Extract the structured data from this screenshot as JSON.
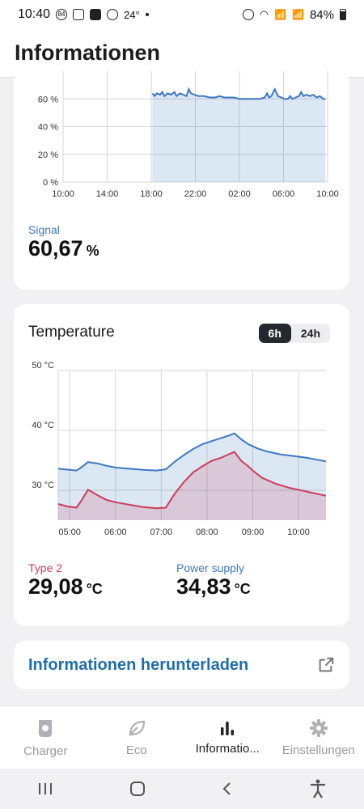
{
  "status_bar": {
    "time": "10:40",
    "notif_badge": "84",
    "temperature": "24°",
    "battery": "84%"
  },
  "app": {
    "title": "Informationen"
  },
  "signal": {
    "label": "Signal",
    "value": "60,67",
    "unit": "%",
    "chart_data": {
      "type": "area",
      "yticks": [
        "0 %",
        "20 %",
        "40 %",
        "60 %"
      ],
      "xticks": [
        "10:00",
        "14:00",
        "18:00",
        "22:00",
        "02:00",
        "06:00",
        "10:00"
      ],
      "ylim": [
        0,
        80
      ],
      "xlim": [
        0,
        24
      ],
      "series": [
        {
          "color": "#3c78c2",
          "points": [
            [
              8.1,
              64
            ],
            [
              8.3,
              62
            ],
            [
              8.5,
              64
            ],
            [
              8.8,
              63
            ],
            [
              9.0,
              65
            ],
            [
              9.2,
              62
            ],
            [
              9.5,
              64
            ],
            [
              9.8,
              63
            ],
            [
              10.1,
              65
            ],
            [
              10.3,
              62
            ],
            [
              10.6,
              64
            ],
            [
              10.9,
              63
            ],
            [
              11.2,
              62
            ],
            [
              11.4,
              67
            ],
            [
              11.6,
              64
            ],
            [
              11.9,
              63
            ],
            [
              12.3,
              62
            ],
            [
              12.8,
              62
            ],
            [
              13.3,
              61
            ],
            [
              13.8,
              61
            ],
            [
              14.2,
              62
            ],
            [
              14.6,
              61
            ],
            [
              15.0,
              61
            ],
            [
              15.5,
              61
            ],
            [
              16.0,
              60
            ],
            [
              16.6,
              60
            ],
            [
              17.2,
              60
            ],
            [
              17.8,
              60
            ],
            [
              18.3,
              61
            ],
            [
              18.5,
              64
            ],
            [
              18.7,
              61
            ],
            [
              18.9,
              62
            ],
            [
              19.2,
              67
            ],
            [
              19.5,
              62
            ],
            [
              19.8,
              61
            ],
            [
              20.1,
              60
            ],
            [
              20.4,
              60
            ],
            [
              20.6,
              62
            ],
            [
              20.8,
              60
            ],
            [
              21.1,
              61
            ],
            [
              21.4,
              62
            ],
            [
              21.6,
              65
            ],
            [
              21.8,
              62
            ],
            [
              22.1,
              63
            ],
            [
              22.4,
              62
            ],
            [
              22.7,
              63
            ],
            [
              23.0,
              61
            ],
            [
              23.3,
              62
            ],
            [
              23.6,
              60
            ],
            [
              23.8,
              60
            ]
          ]
        }
      ]
    }
  },
  "temperature": {
    "title": "Temperature",
    "toggle": [
      "6h",
      "24h"
    ],
    "active_toggle": "6h",
    "chart_data": {
      "type": "area",
      "yticks": [
        "30 °C",
        "40 °C",
        "50 °C"
      ],
      "xticks": [
        "05:00",
        "06:00",
        "07:00",
        "08:00",
        "09:00",
        "10:00"
      ],
      "ylim": [
        25,
        50
      ],
      "xlim": [
        4.75,
        10.6
      ],
      "series": [
        {
          "name": "Power supply",
          "color": "#3c78c2",
          "points": [
            [
              4.75,
              33.6
            ],
            [
              5.0,
              33.4
            ],
            [
              5.15,
              33.3
            ],
            [
              5.25,
              33.8
            ],
            [
              5.4,
              34.7
            ],
            [
              5.6,
              34.5
            ],
            [
              5.8,
              34.1
            ],
            [
              6.0,
              33.8
            ],
            [
              6.3,
              33.6
            ],
            [
              6.6,
              33.4
            ],
            [
              6.9,
              33.3
            ],
            [
              7.1,
              33.5
            ],
            [
              7.3,
              34.8
            ],
            [
              7.5,
              35.9
            ],
            [
              7.7,
              36.9
            ],
            [
              7.9,
              37.7
            ],
            [
              8.1,
              38.2
            ],
            [
              8.3,
              38.7
            ],
            [
              8.5,
              39.2
            ],
            [
              8.6,
              39.5
            ],
            [
              8.75,
              38.5
            ],
            [
              8.9,
              37.7
            ],
            [
              9.1,
              37.0
            ],
            [
              9.3,
              36.5
            ],
            [
              9.6,
              36.0
            ],
            [
              9.9,
              35.7
            ],
            [
              10.2,
              35.4
            ],
            [
              10.6,
              34.83
            ]
          ]
        },
        {
          "name": "Type 2",
          "color": "#cc3c5a",
          "points": [
            [
              4.75,
              27.7
            ],
            [
              4.95,
              27.3
            ],
            [
              5.15,
              27.1
            ],
            [
              5.25,
              28.2
            ],
            [
              5.4,
              30.1
            ],
            [
              5.6,
              29.2
            ],
            [
              5.8,
              28.4
            ],
            [
              6.0,
              28.0
            ],
            [
              6.3,
              27.6
            ],
            [
              6.6,
              27.2
            ],
            [
              6.9,
              27.0
            ],
            [
              7.1,
              27.1
            ],
            [
              7.3,
              29.5
            ],
            [
              7.5,
              31.4
            ],
            [
              7.7,
              33.0
            ],
            [
              7.9,
              34.0
            ],
            [
              8.1,
              34.9
            ],
            [
              8.3,
              35.4
            ],
            [
              8.5,
              36.1
            ],
            [
              8.6,
              36.4
            ],
            [
              8.75,
              34.9
            ],
            [
              8.9,
              34.0
            ],
            [
              9.0,
              33.3
            ],
            [
              9.2,
              32.1
            ],
            [
              9.5,
              31.1
            ],
            [
              9.8,
              30.4
            ],
            [
              10.1,
              29.9
            ],
            [
              10.6,
              29.08
            ]
          ]
        }
      ]
    },
    "readings": [
      {
        "label": "Type 2",
        "value": "29,08",
        "unit": "°C"
      },
      {
        "label": "Power supply",
        "value": "34,83",
        "unit": "°C"
      }
    ]
  },
  "download": {
    "label": "Informationen herunterladen"
  },
  "nav": [
    {
      "label": "Charger",
      "icon": "charger-icon"
    },
    {
      "label": "Eco",
      "icon": "leaf-icon"
    },
    {
      "label": "Informatio...",
      "icon": "bar-chart-icon"
    },
    {
      "label": "Einstellungen",
      "icon": "gear-icon"
    }
  ],
  "active_nav": "Informatio..."
}
